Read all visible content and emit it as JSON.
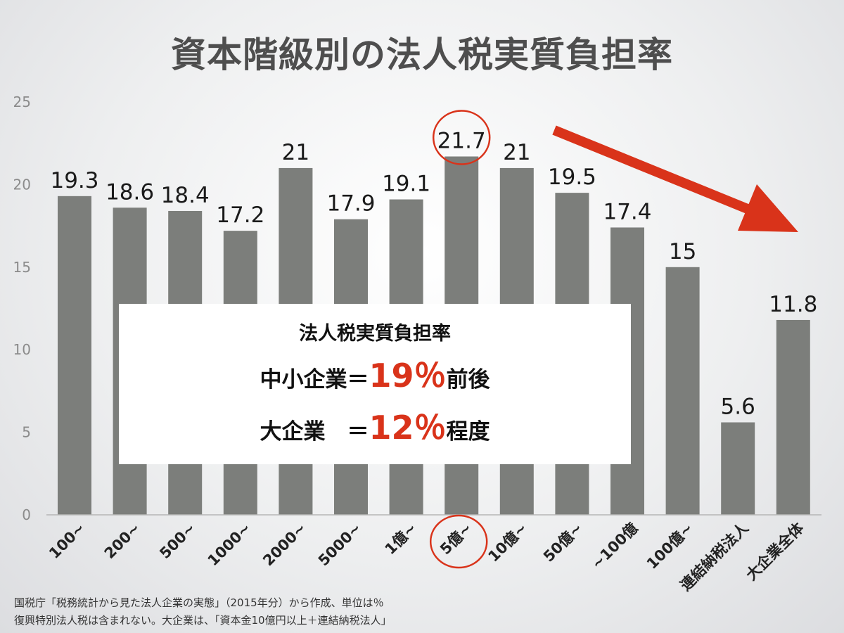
{
  "chart_data": {
    "type": "bar",
    "title": "資本階級別の法人税実質負担率",
    "categories": [
      "100~",
      "200~",
      "500~",
      "1000~",
      "2000~",
      "5000~",
      "1億~",
      "5億~",
      "10億~",
      "50億~",
      "~100億",
      "100億~",
      "連結納税法人",
      "大企業全体"
    ],
    "values": [
      19.3,
      18.6,
      18.4,
      17.2,
      21,
      17.9,
      19.1,
      21.7,
      21,
      19.5,
      17.4,
      15,
      5.6,
      11.8
    ],
    "value_labels": [
      "19.3",
      "18.6",
      "18.4",
      "17.2",
      "21",
      "17.9",
      "19.1",
      "21.7",
      "21",
      "19.5",
      "17.4",
      "15",
      "5.6",
      "11.8"
    ],
    "y_ticks": [
      "0",
      "5",
      "10",
      "15",
      "20",
      "25"
    ],
    "ylim": [
      0,
      25
    ],
    "xlabel": "",
    "ylabel": "",
    "grid": false,
    "highlighted_category": "5億~",
    "annotations": [
      "circle around 21.7 and 5億~",
      "red downward trend arrow"
    ],
    "colors": {
      "bar": "#7c7e7b",
      "accent": "#d9331a",
      "circle": "#d9331a"
    }
  },
  "summary": {
    "heading": "法人税実質負担率",
    "sme_label": "中小企業＝",
    "sme_value": "19％",
    "sme_suffix": "前後",
    "large_label": "大企業　＝",
    "large_value": "12％",
    "large_suffix": "程度"
  },
  "footnote": {
    "line1": "国税庁「税務統計から見た法人企業の実態」（2015年分）から作成、単位は％",
    "line2": "復興特別法人税は含まれない。大企業は、「資本金10億円以上＋連結納税法人」"
  }
}
